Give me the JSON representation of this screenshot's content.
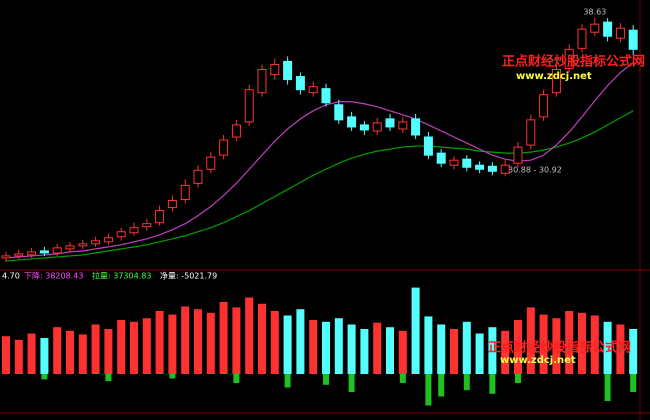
{
  "chart_data": [
    {
      "type": "candlestick",
      "high_label": "38.63",
      "range_label": "30.88 - 30.92",
      "watermark": "正点财经炒股指标公式网",
      "watermark_url": "www.zdcj.net",
      "ylim": [
        14,
        40
      ],
      "open": [
        14.8,
        15.0,
        15.1,
        15.5,
        15.3,
        15.7,
        16.0,
        16.2,
        16.4,
        16.9,
        17.3,
        17.9,
        18.3,
        19.8,
        20.6,
        22.2,
        23.6,
        25.0,
        26.8,
        28.3,
        31.2,
        33.0,
        34.3,
        32.8,
        31.2,
        31.6,
        30.0,
        28.8,
        28.0,
        27.4,
        28.6,
        27.6,
        28.6,
        26.8,
        25.2,
        24.0,
        24.6,
        24.0,
        23.9,
        23.2,
        24.2,
        26.0,
        28.8,
        31.2,
        33.6,
        35.6,
        37.2,
        38.2,
        36.6,
        37.4
      ],
      "close": [
        15.0,
        15.2,
        15.4,
        15.3,
        15.8,
        16.0,
        16.2,
        16.5,
        16.8,
        17.4,
        17.8,
        18.2,
        19.5,
        20.5,
        22.0,
        23.5,
        24.8,
        26.5,
        28.0,
        31.5,
        33.5,
        34.0,
        32.5,
        31.5,
        31.8,
        30.2,
        28.5,
        27.8,
        27.5,
        28.2,
        27.8,
        28.3,
        27.0,
        25.0,
        24.2,
        24.5,
        23.8,
        23.6,
        23.4,
        24.0,
        25.8,
        28.5,
        31.0,
        33.5,
        35.5,
        37.5,
        38.0,
        36.8,
        37.6,
        35.5
      ],
      "low": [
        14.4,
        14.7,
        14.8,
        15.0,
        15.0,
        15.4,
        15.7,
        15.9,
        16.1,
        16.5,
        17.0,
        17.5,
        18.0,
        19.4,
        20.2,
        21.8,
        23.2,
        24.6,
        26.4,
        27.9,
        30.8,
        32.5,
        32.0,
        31.0,
        30.8,
        29.8,
        28.1,
        27.4,
        27.0,
        27.0,
        27.4,
        27.2,
        26.6,
        24.6,
        23.8,
        23.6,
        23.4,
        23.2,
        23.0,
        22.9,
        23.8,
        25.6,
        28.4,
        30.8,
        33.2,
        35.2,
        36.8,
        36.3,
        36.2,
        34.9
      ],
      "high": [
        15.4,
        15.6,
        15.8,
        15.9,
        16.2,
        16.4,
        16.6,
        16.9,
        17.2,
        17.8,
        18.3,
        18.7,
        20.0,
        21.0,
        22.6,
        24.0,
        25.3,
        27.0,
        28.5,
        32.0,
        34.0,
        34.6,
        34.8,
        33.2,
        32.3,
        32.1,
        30.5,
        29.3,
        28.4,
        28.7,
        29.1,
        28.8,
        29.1,
        27.3,
        25.6,
        24.9,
        25.0,
        24.4,
        24.3,
        24.5,
        26.3,
        29.0,
        31.5,
        34.0,
        36.0,
        38.0,
        38.63,
        38.6,
        38.1,
        37.9
      ],
      "up_color": "#ff3232",
      "down_color": "#54ffff",
      "series": [
        {
          "color": "#00a000",
          "values": [
            14.5,
            14.6,
            14.7,
            14.8,
            14.9,
            15.0,
            15.1,
            15.3,
            15.5,
            15.7,
            15.9,
            16.1,
            16.4,
            16.7,
            17.0,
            17.4,
            17.8,
            18.3,
            18.9,
            19.5,
            20.2,
            20.9,
            21.6,
            22.3,
            23.0,
            23.6,
            24.2,
            24.7,
            25.1,
            25.4,
            25.6,
            25.8,
            25.9,
            25.9,
            25.8,
            25.7,
            25.6,
            25.4,
            25.3,
            25.2,
            25.2,
            25.3,
            25.5,
            25.8,
            26.2,
            26.7,
            27.3,
            28.0,
            28.7,
            29.4
          ]
        },
        {
          "color": "#c040c0",
          "values": [
            14.8,
            14.9,
            15.0,
            15.1,
            15.2,
            15.4,
            15.5,
            15.7,
            15.9,
            16.1,
            16.4,
            16.7,
            17.1,
            17.6,
            18.2,
            19.0,
            19.9,
            21.0,
            22.2,
            23.6,
            25.0,
            26.4,
            27.6,
            28.6,
            29.4,
            30.0,
            30.3,
            30.3,
            30.1,
            29.8,
            29.4,
            29.0,
            28.6,
            28.0,
            27.4,
            26.8,
            26.2,
            25.6,
            25.0,
            24.6,
            24.4,
            24.5,
            25.0,
            26.0,
            27.3,
            28.8,
            30.4,
            31.9,
            33.2,
            34.2
          ]
        }
      ]
    },
    {
      "type": "bar",
      "annotations": [
        "4.70",
        "下降: 38208.43",
        "拉量: 37304.83",
        "净量: -5021.79"
      ],
      "watermark": "正点财经炒股指标公式网",
      "watermark_url": "www.zdcj.net",
      "ylim": [
        -40,
        100
      ],
      "values": [
        42,
        38,
        45,
        40,
        52,
        48,
        44,
        55,
        50,
        60,
        58,
        62,
        70,
        66,
        75,
        72,
        68,
        80,
        74,
        85,
        78,
        70,
        65,
        72,
        60,
        58,
        62,
        55,
        50,
        57,
        52,
        48,
        96,
        64,
        55,
        50,
        58,
        45,
        52,
        48,
        60,
        74,
        66,
        62,
        70,
        68,
        65,
        58,
        55,
        50
      ],
      "net": [
        null,
        null,
        null,
        -6,
        null,
        null,
        null,
        null,
        -8,
        null,
        null,
        null,
        null,
        -5,
        null,
        null,
        null,
        null,
        -10,
        null,
        null,
        null,
        -15,
        null,
        null,
        -12,
        null,
        -20,
        null,
        null,
        null,
        -10,
        null,
        -35,
        -25,
        null,
        -18,
        null,
        -22,
        null,
        -10,
        null,
        null,
        null,
        null,
        null,
        null,
        -30,
        null,
        -20
      ],
      "net_color": "#20c020"
    }
  ]
}
